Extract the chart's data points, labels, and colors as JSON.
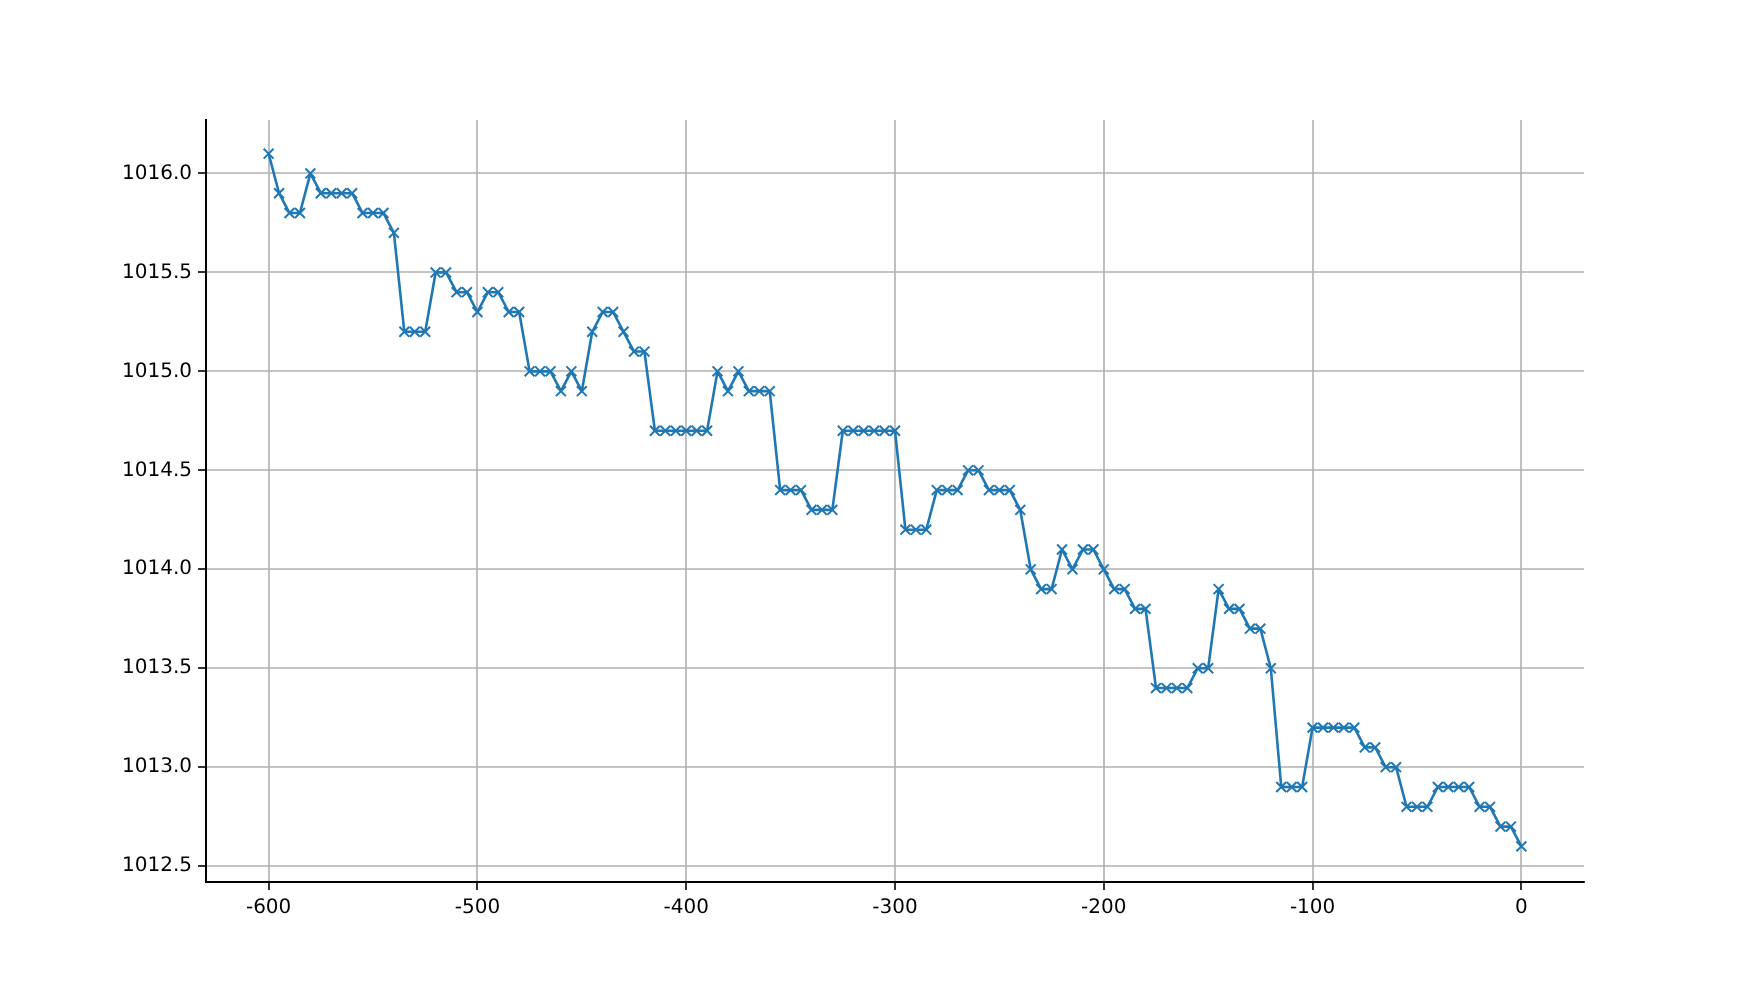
{
  "chart_data": {
    "type": "line",
    "x": [
      -600,
      -595,
      -590,
      -585,
      -580,
      -575,
      -570,
      -565,
      -560,
      -555,
      -550,
      -545,
      -540,
      -535,
      -530,
      -525,
      -520,
      -515,
      -510,
      -505,
      -500,
      -495,
      -490,
      -485,
      -480,
      -475,
      -470,
      -465,
      -460,
      -455,
      -450,
      -445,
      -440,
      -435,
      -430,
      -425,
      -420,
      -415,
      -410,
      -405,
      -400,
      -395,
      -390,
      -385,
      -380,
      -375,
      -370,
      -365,
      -360,
      -355,
      -350,
      -345,
      -340,
      -335,
      -330,
      -325,
      -320,
      -315,
      -310,
      -305,
      -300,
      -295,
      -290,
      -285,
      -280,
      -275,
      -270,
      -265,
      -260,
      -255,
      -250,
      -245,
      -240,
      -235,
      -230,
      -225,
      -220,
      -215,
      -210,
      -205,
      -200,
      -195,
      -190,
      -185,
      -180,
      -175,
      -170,
      -165,
      -160,
      -155,
      -150,
      -145,
      -140,
      -135,
      -130,
      -125,
      -120,
      -115,
      -110,
      -105,
      -100,
      -95,
      -90,
      -85,
      -80,
      -75,
      -70,
      -65,
      -60,
      -55,
      -50,
      -45,
      -40,
      -35,
      -30,
      -25,
      -20,
      -15,
      -10,
      -5,
      0
    ],
    "series": [
      {
        "color": "#1f77b4",
        "values": [
          1016.1,
          1015.9,
          1015.8,
          1015.8,
          1016.0,
          1015.9,
          1015.9,
          1015.9,
          1015.9,
          1015.8,
          1015.8,
          1015.8,
          1015.7,
          1015.2,
          1015.2,
          1015.2,
          1015.5,
          1015.5,
          1015.4,
          1015.4,
          1015.3,
          1015.4,
          1015.4,
          1015.3,
          1015.3,
          1015.0,
          1015.0,
          1015.0,
          1014.9,
          1015.0,
          1014.9,
          1015.2,
          1015.3,
          1015.3,
          1015.2,
          1015.1,
          1015.1,
          1014.7,
          1014.7,
          1014.7,
          1014.7,
          1014.7,
          1014.7,
          1015.0,
          1014.9,
          1015.0,
          1014.9,
          1014.9,
          1014.9,
          1014.4,
          1014.4,
          1014.4,
          1014.3,
          1014.3,
          1014.3,
          1014.7,
          1014.7,
          1014.7,
          1014.7,
          1014.7,
          1014.7,
          1014.2,
          1014.2,
          1014.2,
          1014.4,
          1014.4,
          1014.4,
          1014.5,
          1014.5,
          1014.4,
          1014.4,
          1014.4,
          1014.3,
          1014.0,
          1013.9,
          1013.9,
          1014.1,
          1014.0,
          1014.1,
          1014.1,
          1014.0,
          1013.9,
          1013.9,
          1013.8,
          1013.8,
          1013.4,
          1013.4,
          1013.4,
          1013.4,
          1013.5,
          1013.5,
          1013.9,
          1013.8,
          1013.8,
          1013.7,
          1013.7,
          1013.5,
          1012.9,
          1012.9,
          1012.9,
          1013.2,
          1013.2,
          1013.2,
          1013.2,
          1013.2,
          1013.1,
          1013.1,
          1013.0,
          1013.0,
          1012.8,
          1012.8,
          1012.8,
          1012.9,
          1012.9,
          1012.9,
          1012.9,
          1012.8,
          1012.8,
          1012.7,
          1012.7,
          1012.6
        ]
      }
    ],
    "xlim": [
      -630,
      30
    ],
    "xticks": [
      -600,
      -500,
      -400,
      -300,
      -200,
      -100,
      0
    ],
    "ylim": [
      1012.42,
      1016.27
    ],
    "yticks": [
      {
        "value": 1012.5,
        "label": "1012.5"
      },
      {
        "value": 1013,
        "label": "1013.0"
      },
      {
        "value": 1013.5,
        "label": "1013.5"
      },
      {
        "value": 1014,
        "label": "1014.0"
      },
      {
        "value": 1014.5,
        "label": "1014.5"
      },
      {
        "value": 1015,
        "label": "1015.0"
      },
      {
        "value": 1015.5,
        "label": "1015.5"
      },
      {
        "value": 1016,
        "label": "1016.0"
      }
    ],
    "grid": true,
    "marker": "cross",
    "line_style": "solid"
  }
}
